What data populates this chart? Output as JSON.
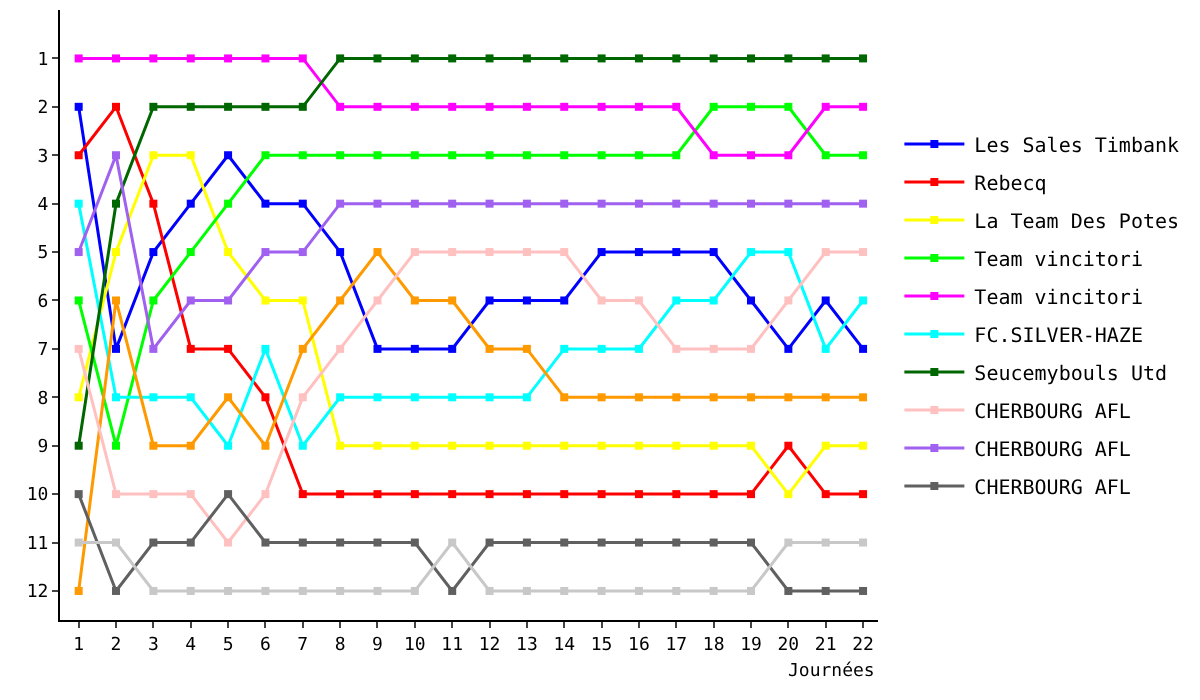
{
  "chart_data": {
    "type": "line",
    "xlabel": "Journées",
    "x": [
      1,
      2,
      3,
      4,
      5,
      6,
      7,
      8,
      9,
      10,
      11,
      12,
      13,
      14,
      15,
      16,
      17,
      18,
      19,
      20,
      21,
      22
    ],
    "xlim": [
      0.5,
      22.4
    ],
    "xticks": [
      1,
      2,
      3,
      4,
      5,
      6,
      7,
      8,
      9,
      10,
      11,
      12,
      13,
      14,
      15,
      16,
      17,
      18,
      19,
      20,
      21,
      22
    ],
    "ylim": [
      12.6,
      0
    ],
    "yticks": [
      1,
      2,
      3,
      4,
      5,
      6,
      7,
      8,
      9,
      10,
      11,
      12
    ],
    "grid": false,
    "legend": "right",
    "marker": "square",
    "line_style": "solid",
    "series": [
      {
        "name": "Les Sales Timbank",
        "color": "#0000ff",
        "values": [
          2,
          7,
          5,
          4,
          3,
          4,
          4,
          5,
          7,
          7,
          7,
          6,
          6,
          6,
          5,
          5,
          5,
          5,
          6,
          7,
          6,
          7
        ]
      },
      {
        "name": "Rebecq",
        "color": "#ff0000",
        "values": [
          3,
          2,
          4,
          7,
          7,
          8,
          10,
          10,
          10,
          10,
          10,
          10,
          10,
          10,
          10,
          10,
          10,
          10,
          10,
          9,
          10,
          10
        ]
      },
      {
        "name": "La Team Des Potes",
        "color": "#ffff00",
        "values": [
          8,
          5,
          3,
          3,
          5,
          6,
          6,
          9,
          9,
          9,
          9,
          9,
          9,
          9,
          9,
          9,
          9,
          9,
          9,
          10,
          9,
          9
        ]
      },
      {
        "name": "Team vincitori",
        "color": "#00ff00",
        "values": [
          6,
          9,
          6,
          5,
          4,
          3,
          3,
          3,
          3,
          3,
          3,
          3,
          3,
          3,
          3,
          3,
          3,
          2,
          2,
          2,
          3,
          3
        ]
      },
      {
        "name": "Team vincitori",
        "color": "#ff00ff",
        "values": [
          1,
          1,
          1,
          1,
          1,
          1,
          1,
          2,
          2,
          2,
          2,
          2,
          2,
          2,
          2,
          2,
          2,
          3,
          3,
          3,
          2,
          2
        ]
      },
      {
        "name": "FC.SILVER-HAZE",
        "color": "#00ffff",
        "values": [
          4,
          8,
          8,
          8,
          9,
          7,
          9,
          8,
          8,
          8,
          8,
          8,
          8,
          7,
          7,
          7,
          6,
          6,
          5,
          5,
          7,
          6
        ]
      },
      {
        "name": "Seucemybouls Utd",
        "color": "#006600",
        "values": [
          9,
          4,
          2,
          2,
          2,
          2,
          2,
          1,
          1,
          1,
          1,
          1,
          1,
          1,
          1,
          1,
          1,
          1,
          1,
          1,
          1,
          1
        ]
      },
      {
        "color": "#ff9900",
        "values": [
          12,
          6,
          9,
          9,
          8,
          9,
          7,
          6,
          5,
          6,
          6,
          7,
          7,
          8,
          8,
          8,
          8,
          8,
          8,
          8,
          8,
          8
        ]
      },
      {
        "name": "CHERBOURG AFL",
        "color": "#ffc0c0",
        "values": [
          7,
          10,
          10,
          10,
          11,
          10,
          8,
          7,
          6,
          5,
          5,
          5,
          5,
          5,
          6,
          6,
          7,
          7,
          7,
          6,
          5,
          5
        ]
      },
      {
        "name": "CHERBOURG AFL",
        "color": "#a060f0",
        "values": [
          5,
          3,
          7,
          6,
          6,
          5,
          5,
          4,
          4,
          4,
          4,
          4,
          4,
          4,
          4,
          4,
          4,
          4,
          4,
          4,
          4,
          4
        ]
      },
      {
        "name": "CHERBOURG AFL",
        "color": "#606060",
        "values": [
          10,
          12,
          11,
          11,
          10,
          11,
          11,
          11,
          11,
          11,
          12,
          11,
          11,
          11,
          11,
          11,
          11,
          11,
          11,
          12,
          12,
          12
        ]
      },
      {
        "color": "#c8c8c8",
        "values": [
          11,
          11,
          12,
          12,
          12,
          12,
          12,
          12,
          12,
          12,
          11,
          12,
          12,
          12,
          12,
          12,
          12,
          12,
          12,
          11,
          11,
          11
        ]
      }
    ]
  }
}
